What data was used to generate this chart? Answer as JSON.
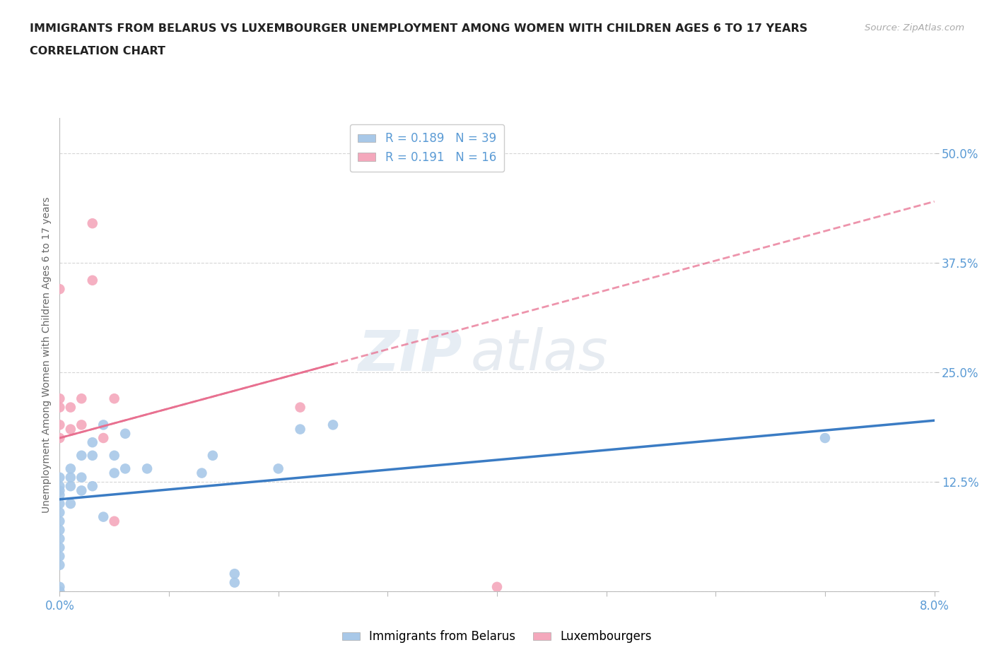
{
  "title_line1": "IMMIGRANTS FROM BELARUS VS LUXEMBOURGER UNEMPLOYMENT AMONG WOMEN WITH CHILDREN AGES 6 TO 17 YEARS",
  "title_line2": "CORRELATION CHART",
  "source_text": "Source: ZipAtlas.com",
  "ylabel": "Unemployment Among Women with Children Ages 6 to 17 years",
  "xlim": [
    0.0,
    0.08
  ],
  "ylim": [
    0.0,
    0.54
  ],
  "xticks": [
    0.0,
    0.01,
    0.02,
    0.03,
    0.04,
    0.05,
    0.06,
    0.07,
    0.08
  ],
  "xticklabels": [
    "0.0%",
    "",
    "",
    "",
    "",
    "",
    "",
    "",
    "8.0%"
  ],
  "yticks": [
    0.0,
    0.125,
    0.25,
    0.375,
    0.5
  ],
  "yticklabels": [
    "",
    "12.5%",
    "25.0%",
    "37.5%",
    "50.0%"
  ],
  "belarus_color": "#A8C8E8",
  "luxembourger_color": "#F4A8BC",
  "belarus_line_color": "#3B7CC4",
  "luxembourger_line_color": "#E87090",
  "R_belarus": 0.189,
  "N_belarus": 39,
  "R_luxembourger": 0.191,
  "N_luxembourger": 16,
  "watermark_zip": "ZIP",
  "watermark_atlas": "atlas",
  "grid_color": "#CCCCCC",
  "background_color": "#FFFFFF",
  "title_color": "#222222",
  "tick_label_color": "#5B9BD5",
  "belarus_x": [
    0.0,
    0.0,
    0.0,
    0.0,
    0.0,
    0.0,
    0.0,
    0.0,
    0.0,
    0.0,
    0.0,
    0.0,
    0.001,
    0.001,
    0.001,
    0.001,
    0.002,
    0.002,
    0.002,
    0.003,
    0.003,
    0.003,
    0.004,
    0.004,
    0.005,
    0.005,
    0.006,
    0.006,
    0.008,
    0.013,
    0.014,
    0.016,
    0.016,
    0.02,
    0.022,
    0.025,
    0.07,
    0.0,
    0.0
  ],
  "belarus_y": [
    0.07,
    0.08,
    0.09,
    0.1,
    0.11,
    0.115,
    0.12,
    0.13,
    0.05,
    0.06,
    0.04,
    0.03,
    0.1,
    0.12,
    0.13,
    0.14,
    0.115,
    0.13,
    0.155,
    0.12,
    0.155,
    0.17,
    0.085,
    0.19,
    0.135,
    0.155,
    0.14,
    0.18,
    0.14,
    0.135,
    0.155,
    0.01,
    0.02,
    0.14,
    0.185,
    0.19,
    0.175,
    0.0,
    0.005
  ],
  "luxembourger_x": [
    0.001,
    0.001,
    0.002,
    0.002,
    0.003,
    0.003,
    0.004,
    0.0,
    0.0,
    0.0,
    0.0,
    0.0,
    0.005,
    0.005,
    0.022,
    0.04
  ],
  "luxembourger_y": [
    0.185,
    0.21,
    0.19,
    0.22,
    0.355,
    0.42,
    0.175,
    0.345,
    0.175,
    0.21,
    0.22,
    0.19,
    0.22,
    0.08,
    0.21,
    0.005
  ],
  "lux_line_x0": 0.0,
  "lux_line_y0": 0.175,
  "lux_line_x1": 0.08,
  "lux_line_y1": 0.445,
  "belarus_line_x0": 0.0,
  "belarus_line_y0": 0.105,
  "belarus_line_x1": 0.08,
  "belarus_line_y1": 0.195
}
